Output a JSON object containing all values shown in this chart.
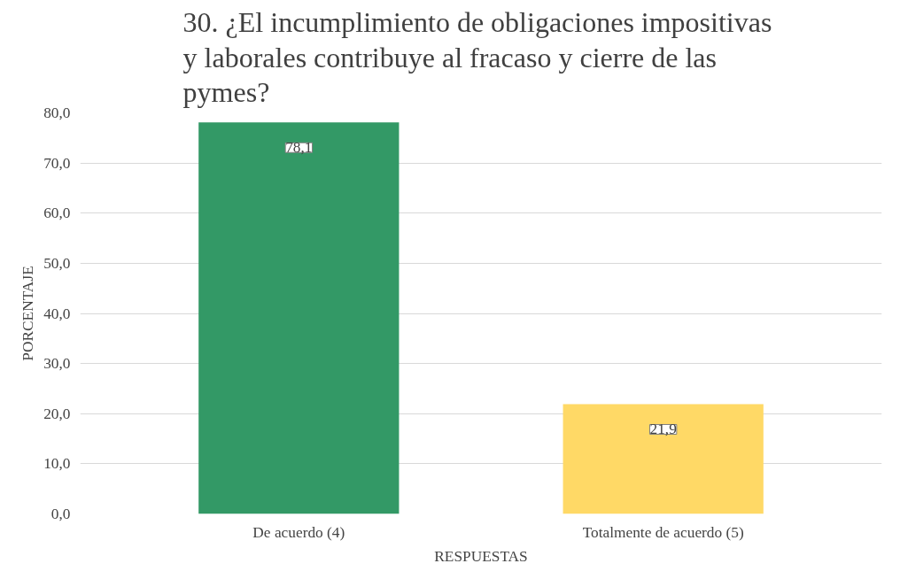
{
  "chart_data": {
    "type": "bar",
    "title": "30. ¿El incumplimiento  de obligaciones impositivas\ny laborales contribuye al fracaso y cierre de las\npymes?",
    "xlabel": "RESPUESTAS",
    "ylabel": "PORCENTAJE",
    "categories": [
      "De acuerdo (4)",
      "Totalmente de acuerdo (5)"
    ],
    "values": [
      78.1,
      21.9
    ],
    "colors": [
      "#339966",
      "#ffd966"
    ],
    "value_labels": [
      "78,1",
      "21,9"
    ],
    "ylim": [
      0,
      80
    ],
    "yticks": [
      {
        "value": 0,
        "label": "0,0"
      },
      {
        "value": 10,
        "label": "10,0"
      },
      {
        "value": 20,
        "label": "20,0"
      },
      {
        "value": 30,
        "label": "30,0"
      },
      {
        "value": 40,
        "label": "40,0"
      },
      {
        "value": 50,
        "label": "50,0"
      },
      {
        "value": 60,
        "label": "60,0"
      },
      {
        "value": 70,
        "label": "70,0"
      },
      {
        "value": 80,
        "label": "80,0"
      }
    ],
    "grid": "y"
  }
}
